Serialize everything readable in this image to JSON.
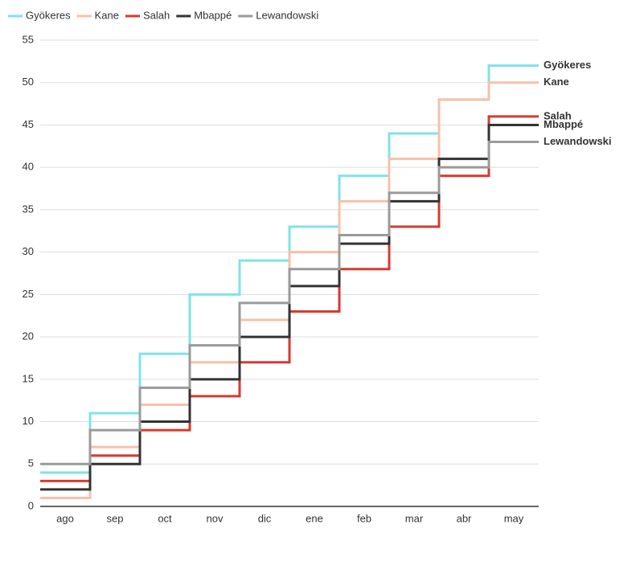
{
  "chart_data": {
    "type": "step",
    "categories": [
      "ago",
      "sep",
      "oct",
      "nov",
      "dic",
      "ene",
      "feb",
      "mar",
      "abr",
      "may"
    ],
    "series": [
      {
        "name": "Gyökeres",
        "color": "#7fe3e6",
        "values": [
          4,
          11,
          18,
          25,
          29,
          33,
          39,
          44,
          48,
          52
        ]
      },
      {
        "name": "Kane",
        "color": "#f8c0aa",
        "values": [
          1,
          7,
          12,
          17,
          22,
          30,
          36,
          41,
          48,
          50
        ]
      },
      {
        "name": "Salah",
        "color": "#d63a2f",
        "values": [
          3,
          6,
          9,
          13,
          17,
          23,
          28,
          33,
          39,
          46
        ]
      },
      {
        "name": "Mbappé",
        "color": "#333333",
        "values": [
          2,
          5,
          10,
          15,
          20,
          26,
          31,
          36,
          41,
          45
        ]
      },
      {
        "name": "Lewandowski",
        "color": "#9a9a9a",
        "values": [
          5,
          9,
          14,
          19,
          24,
          28,
          32,
          37,
          40,
          43
        ]
      }
    ],
    "ylim": [
      0,
      55
    ],
    "yticks": [
      0,
      5,
      10,
      15,
      20,
      25,
      30,
      35,
      40,
      45,
      50,
      55
    ],
    "grid": true
  }
}
